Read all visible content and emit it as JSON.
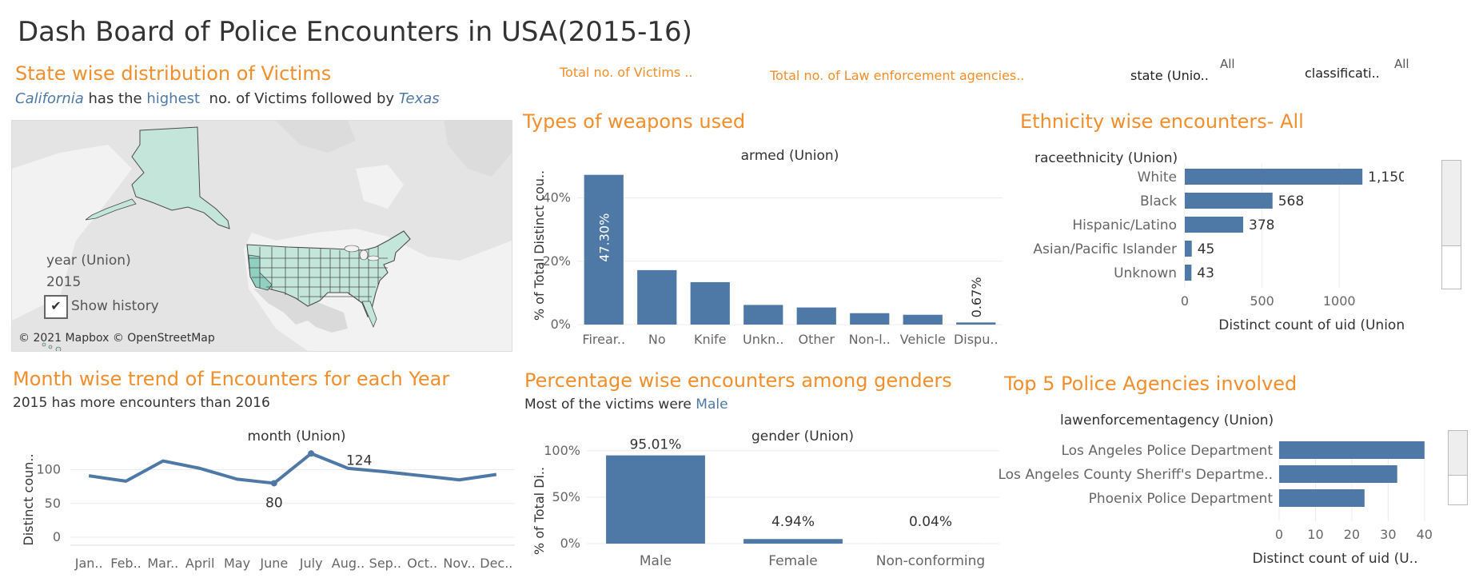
{
  "page_title": "Dash Board of Police Encounters in USA(2015-16)",
  "filters": {
    "total_victims_label": "Total no. of Victims ..",
    "total_agencies_label": "Total no. of Law enforcement agencies..",
    "state_label": "state (Unio..",
    "state_value": "All",
    "classification_label": "classificati..",
    "classification_value": "All"
  },
  "map_panel": {
    "title": "State wise distribution of Victims",
    "subtitle_state1": "California",
    "subtitle_mid1": " has the ",
    "subtitle_highest": "highest",
    "subtitle_mid2": "  no. of Victims followed by ",
    "subtitle_state2": "Texas",
    "year_label": "year (Union)",
    "year_value": "2015",
    "show_history_label": "Show history",
    "attribution": "© 2021 Mapbox © OpenStreetMap",
    "colors": {
      "land": "#e4e4e4",
      "water": "#f1f1f1",
      "state_fill": "#c4e6da",
      "highlight": "#8fd0c0",
      "border": "#4a4a4a"
    }
  },
  "weapons_panel": {
    "title": "Types of weapons used"
  },
  "ethnicity_panel": {
    "title": "Ethnicity wise encounters- All"
  },
  "month_panel": {
    "title": "Month wise trend  of Encounters for each Year",
    "subtitle": "2015 has more encounters than 2016"
  },
  "gender_panel": {
    "title": "Percentage wise encounters among genders",
    "subtitle_prefix": "Most of the victims were ",
    "subtitle_highlight": "Male"
  },
  "agency_panel": {
    "title": "Top 5 Police Agencies involved"
  },
  "chart_data": [
    {
      "id": "weapons",
      "type": "bar",
      "header": "armed (Union)",
      "ylabel": "% of Total Distinct cou..",
      "categories": [
        "Firear..",
        "No",
        "Knife",
        "Unkn..",
        "Other",
        "Non-l..",
        "Vehicle",
        "Dispu.."
      ],
      "values": [
        47.3,
        17.2,
        13.4,
        6.2,
        5.4,
        3.6,
        3.1,
        0.67
      ],
      "data_labels": [
        "47.30%",
        "",
        "",
        "",
        "",
        "",
        "",
        "0.67%"
      ],
      "yticks": [
        "0%",
        "20%",
        "40%"
      ],
      "ylim": [
        0,
        50
      ],
      "color": "#4E79A7"
    },
    {
      "id": "ethnicity",
      "type": "bar",
      "orientation": "horizontal",
      "header": "raceethnicity (Union)",
      "xlabel": "Distinct count of uid (Union)",
      "categories": [
        "White",
        "Black",
        "Hispanic/Latino",
        "Asian/Pacific Islander",
        "Unknown"
      ],
      "values": [
        1150,
        568,
        378,
        45,
        43
      ],
      "data_labels": [
        "1,150",
        "568",
        "378",
        "45",
        "43"
      ],
      "xticks": [
        "0",
        "500",
        "1000"
      ],
      "xlim": [
        0,
        1470
      ],
      "color": "#4E79A7"
    },
    {
      "id": "month",
      "type": "line",
      "header": "month (Union)",
      "ylabel": "Distinct coun..",
      "categories": [
        "Jan..",
        "Feb..",
        "Mar..",
        "April",
        "May",
        "June",
        "July",
        "Aug..",
        "Sep..",
        "Oct..",
        "Nov..",
        "Dec.."
      ],
      "values": [
        91,
        83,
        113,
        102,
        86,
        80,
        124,
        102,
        97,
        91,
        85,
        93
      ],
      "annotations": [
        {
          "index": 5,
          "text": "80"
        },
        {
          "index": 6,
          "text": "124"
        }
      ],
      "yticks": [
        "0",
        "50",
        "100"
      ],
      "ylim": [
        0,
        135
      ],
      "color": "#4E79A7"
    },
    {
      "id": "gender",
      "type": "bar",
      "header": "gender (Union)",
      "ylabel": "% of Total Di..",
      "categories": [
        "Male",
        "Female",
        "Non-conforming"
      ],
      "values": [
        95.01,
        4.94,
        0.04
      ],
      "data_labels": [
        "95.01%",
        "4.94%",
        "0.04%"
      ],
      "yticks": [
        "0%",
        "50%",
        "100%"
      ],
      "ylim": [
        0,
        105
      ],
      "color": "#4E79A7"
    },
    {
      "id": "agencies",
      "type": "bar",
      "orientation": "horizontal",
      "header": "lawenforcementagency (Union)",
      "xlabel": "Distinct count of uid (U..",
      "categories": [
        "Los Angeles Police Department",
        "Los Angeles County Sheriff's Departme..",
        "Phoenix Police Department"
      ],
      "values": [
        40,
        32.5,
        23.5
      ],
      "xticks": [
        "0",
        "10",
        "20",
        "30",
        "40"
      ],
      "xlim": [
        0,
        44
      ],
      "color": "#4E79A7"
    }
  ]
}
